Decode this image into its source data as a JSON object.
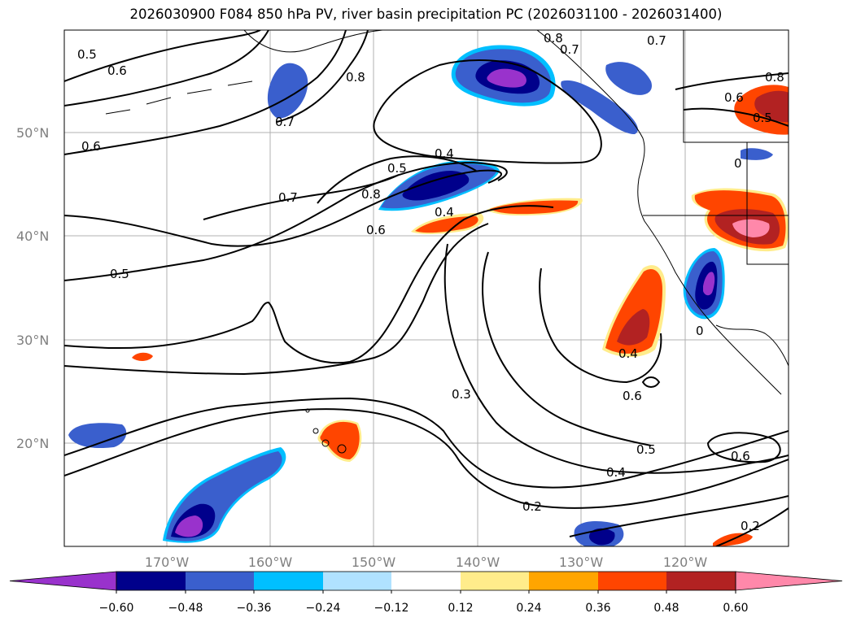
{
  "title": "2026030900 F084 850 hPa PV, river basin precipitation PC (2026031100 - 2026031400)",
  "lat_labels": [
    "50°N",
    "40°N",
    "30°N",
    "20°N"
  ],
  "lon_labels": [
    "170°W",
    "160°W",
    "150°W",
    "140°W",
    "130°W",
    "120°W"
  ],
  "contour_labels": [
    "0.5",
    "0.6",
    "0.6",
    "0.7",
    "0.8",
    "0.8",
    "0.7",
    "0.7",
    "0.8",
    "0.6",
    "0.5",
    "0.4",
    "0.5",
    "0.8",
    "0.7",
    "0.4",
    "0.6",
    "0.5",
    "0.3",
    "0.4",
    "0.6",
    "0.5",
    "0.4",
    "0.6",
    "0.2",
    "0.2",
    "0",
    "0"
  ],
  "colorbar": {
    "ticks": [
      "−0.60",
      "−0.48",
      "−0.36",
      "−0.24",
      "−0.12",
      "0.12",
      "0.24",
      "0.36",
      "0.48",
      "0.60"
    ],
    "colors": [
      "#9932cc",
      "#00008b",
      "#3a5fcd",
      "#00bfff",
      "#b0e2ff",
      "#ffffff",
      "#ffec8b",
      "#ffa500",
      "#ff4500",
      "#b22222",
      "#ff88aa"
    ]
  },
  "colors": {
    "neg_strong": "#9932cc",
    "neg_dark": "#00008b",
    "neg_mid": "#3a5fcd",
    "neg_light": "#00bfff",
    "pos_light": "#ffec8b",
    "pos_mid": "#ffa500",
    "pos_strong": "#ff4500",
    "pos_dark": "#b22222",
    "pos_max": "#ff88aa"
  }
}
